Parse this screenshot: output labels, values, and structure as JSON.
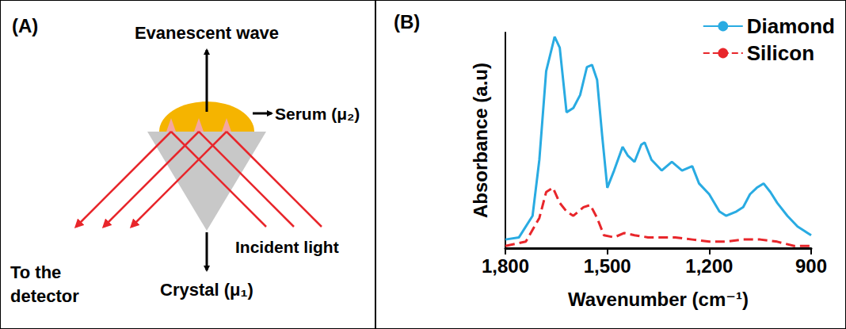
{
  "panel_a": {
    "label": "(A)",
    "evanescent": "Evanescent wave",
    "sample": "Serum (μ₂)",
    "incident": "Incident light",
    "detector": "To the detector",
    "crystal": "Crystal (μ₁)"
  },
  "chart_data": {
    "type": "line",
    "panel_label": "(B)",
    "x_label": "Wavenumber (cm⁻¹)",
    "y_label": "Absorbance (a.u)",
    "xlim": [
      1800,
      900
    ],
    "xticks": [
      1800,
      1500,
      1200,
      900
    ],
    "ylim": [
      0,
      1
    ],
    "tick_labels": "x",
    "grid": false,
    "legend": "top-right",
    "series": [
      {
        "name": "Diamond",
        "color": "#29abe2",
        "line_style": "solid",
        "x": [
          1800,
          1760,
          1720,
          1700,
          1680,
          1655,
          1640,
          1620,
          1600,
          1580,
          1560,
          1545,
          1530,
          1515,
          1500,
          1480,
          1455,
          1440,
          1420,
          1400,
          1390,
          1370,
          1340,
          1310,
          1280,
          1250,
          1230,
          1200,
          1170,
          1150,
          1120,
          1100,
          1080,
          1060,
          1040,
          1020,
          1000,
          970,
          940,
          920,
          900
        ],
        "values": [
          0.04,
          0.05,
          0.15,
          0.41,
          0.82,
          0.98,
          0.93,
          0.63,
          0.65,
          0.71,
          0.84,
          0.85,
          0.78,
          0.52,
          0.28,
          0.36,
          0.47,
          0.43,
          0.4,
          0.48,
          0.49,
          0.41,
          0.36,
          0.4,
          0.36,
          0.38,
          0.3,
          0.25,
          0.17,
          0.15,
          0.17,
          0.19,
          0.25,
          0.28,
          0.3,
          0.26,
          0.21,
          0.15,
          0.1,
          0.08,
          0.06
        ]
      },
      {
        "name": "Silicon",
        "color": "#e8262b",
        "line_style": "dashed",
        "x": [
          1800,
          1740,
          1700,
          1680,
          1660,
          1640,
          1620,
          1600,
          1570,
          1550,
          1530,
          1510,
          1480,
          1450,
          1420,
          1380,
          1300,
          1250,
          1200,
          1150,
          1100,
          1050,
          1000,
          950,
          900
        ],
        "values": [
          0.01,
          0.03,
          0.14,
          0.26,
          0.28,
          0.21,
          0.17,
          0.15,
          0.19,
          0.2,
          0.14,
          0.06,
          0.05,
          0.07,
          0.06,
          0.05,
          0.05,
          0.04,
          0.03,
          0.03,
          0.04,
          0.04,
          0.03,
          0.01,
          0.01
        ]
      }
    ]
  }
}
